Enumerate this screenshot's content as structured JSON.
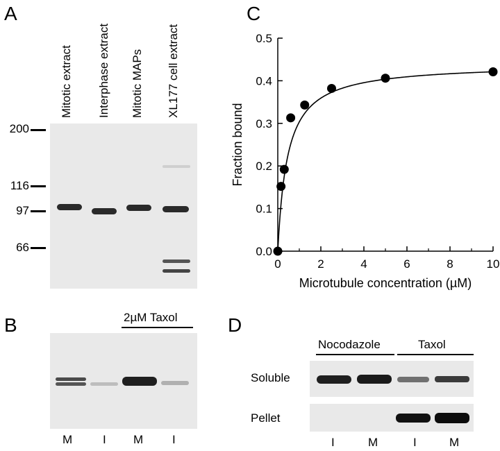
{
  "panel_labels": {
    "a": "A",
    "b": "B",
    "c": "C",
    "d": "D"
  },
  "panel_a": {
    "lanes": [
      "Mitotic extract",
      "Interphase extract",
      "Mitotic MAPs",
      "XL177 cell extract"
    ],
    "markers": [
      "200",
      "116",
      "97",
      "66"
    ]
  },
  "panel_b": {
    "treatment": "2µM Taxol",
    "lanes": [
      "M",
      "I",
      "M",
      "I"
    ]
  },
  "panel_d": {
    "groups": [
      "Nocodazole",
      "Taxol"
    ],
    "rows": [
      "Soluble",
      "Pellet"
    ],
    "lanes": [
      "I",
      "M",
      "I",
      "M"
    ]
  },
  "chart_data": {
    "type": "scatter",
    "xlabel": "Microtubule concentration (µM)",
    "ylabel": "Fraction bound",
    "xlim": [
      0,
      10
    ],
    "ylim": [
      0,
      0.5
    ],
    "xticks": [
      "0",
      "2",
      "4",
      "6",
      "8",
      "10"
    ],
    "yticks": [
      "0.0",
      "0.1",
      "0.2",
      "0.3",
      "0.4",
      "0.5"
    ],
    "x": [
      0,
      0.15,
      0.3,
      0.6,
      1.25,
      2.5,
      5,
      10
    ],
    "y": [
      0,
      0.152,
      0.192,
      0.313,
      0.343,
      0.382,
      0.406,
      0.421
    ],
    "fit": {
      "bmax": 0.44,
      "kd": 0.45
    }
  }
}
